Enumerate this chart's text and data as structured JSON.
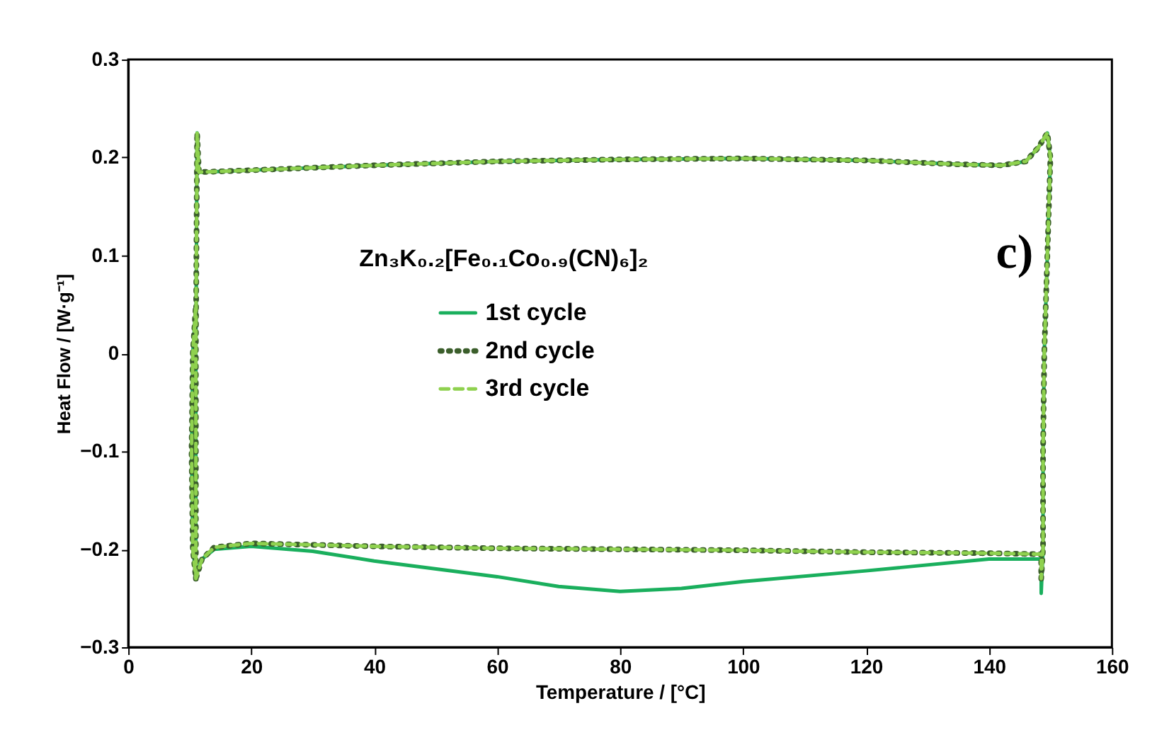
{
  "chart_data": {
    "type": "line",
    "xlabel": "Temperature / [°C]",
    "ylabel": "Heat Flow / [W·g⁻¹]",
    "legend_title": "Zn₃K₀.₂[Fe₀.₁Co₀.₉(CN)₆]₂",
    "annotations": [
      "c)"
    ],
    "xlim": [
      0,
      160
    ],
    "xticks": [
      0,
      20,
      40,
      60,
      80,
      100,
      120,
      140,
      160
    ],
    "ylim": [
      -0.3,
      0.3
    ],
    "yticks": [
      -0.3,
      -0.2,
      -0.1,
      0,
      0.1,
      0.2,
      0.3
    ],
    "grid": false,
    "legend": "center",
    "marker": "none",
    "series": [
      {
        "name": "1st cycle",
        "color": "#1aaf5d",
        "line_style": "solid",
        "x": [
          11,
          11,
          11.2,
          11.5,
          20,
          40,
          60,
          80,
          100,
          120,
          135,
          142,
          146,
          148,
          149.5,
          150,
          149.5,
          149,
          148.8,
          148.8,
          148.5,
          148.5,
          145,
          140,
          120,
          100,
          90,
          80,
          70,
          60,
          40,
          30,
          20,
          14,
          12,
          11,
          10.5,
          10.3,
          10.5,
          11
        ],
        "values": [
          -0.23,
          0.0,
          0.225,
          0.185,
          0.187,
          0.192,
          0.196,
          0.198,
          0.199,
          0.197,
          0.193,
          0.192,
          0.196,
          0.21,
          0.225,
          0.2,
          0.1,
          0.0,
          -0.1,
          -0.2,
          -0.245,
          -0.21,
          -0.21,
          -0.21,
          -0.222,
          -0.233,
          -0.24,
          -0.243,
          -0.238,
          -0.228,
          -0.212,
          -0.202,
          -0.197,
          -0.2,
          -0.21,
          -0.225,
          -0.2,
          -0.1,
          0.0,
          0.05
        ]
      },
      {
        "name": "2nd cycle",
        "color": "#3b5e2b",
        "line_style": "dotted",
        "x": [
          11,
          11,
          11.2,
          11.5,
          20,
          40,
          60,
          80,
          100,
          120,
          135,
          142,
          146,
          148,
          149.5,
          150,
          149.5,
          149,
          148.8,
          148.8,
          148.5,
          148.5,
          140,
          120,
          100,
          80,
          60,
          40,
          20,
          14,
          12,
          11,
          10.5,
          10.3,
          10.5,
          11
        ],
        "values": [
          -0.23,
          0.0,
          0.225,
          0.185,
          0.187,
          0.192,
          0.196,
          0.198,
          0.199,
          0.197,
          0.193,
          0.192,
          0.196,
          0.21,
          0.225,
          0.2,
          0.1,
          0.0,
          -0.1,
          -0.2,
          -0.23,
          -0.205,
          -0.204,
          -0.203,
          -0.201,
          -0.2,
          -0.199,
          -0.197,
          -0.194,
          -0.198,
          -0.21,
          -0.23,
          -0.2,
          -0.1,
          0.0,
          0.05
        ]
      },
      {
        "name": "3rd cycle",
        "color": "#8fd14f",
        "line_style": "dashed",
        "x": [
          11,
          11,
          11.2,
          11.5,
          20,
          40,
          60,
          80,
          100,
          120,
          135,
          142,
          146,
          148,
          149.5,
          150,
          149.5,
          149,
          148.8,
          148.8,
          148.5,
          148.5,
          140,
          120,
          100,
          80,
          60,
          40,
          20,
          14,
          12,
          11,
          10.5,
          10.3,
          10.5,
          11
        ],
        "values": [
          -0.23,
          0.0,
          0.225,
          0.185,
          0.187,
          0.192,
          0.196,
          0.198,
          0.199,
          0.197,
          0.193,
          0.192,
          0.196,
          0.21,
          0.225,
          0.2,
          0.1,
          0.0,
          -0.1,
          -0.2,
          -0.23,
          -0.205,
          -0.204,
          -0.203,
          -0.201,
          -0.2,
          -0.199,
          -0.197,
          -0.194,
          -0.198,
          -0.21,
          -0.23,
          -0.2,
          -0.1,
          0.0,
          0.05
        ]
      }
    ]
  }
}
